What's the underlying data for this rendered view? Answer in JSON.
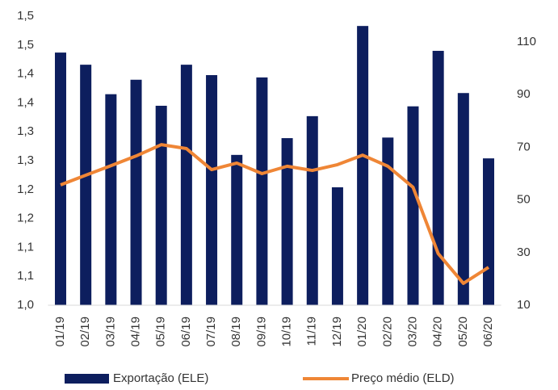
{
  "chart_data": {
    "type": "bar_line",
    "categories": [
      "01/19",
      "02/19",
      "03/19",
      "04/19",
      "05/19",
      "06/19",
      "07/19",
      "08/19",
      "09/19",
      "10/19",
      "11/19",
      "12/19",
      "01/20",
      "02/20",
      "03/20",
      "04/20",
      "05/20",
      "06/20"
    ],
    "series": [
      {
        "name": "Exportação (ELE)",
        "type": "bar",
        "color": "#0d1e5e",
        "values": [
          1.437,
          1.416,
          1.365,
          1.39,
          1.345,
          1.416,
          1.398,
          1.26,
          1.394,
          1.289,
          1.327,
          1.204,
          1.483,
          1.29,
          1.344,
          1.44,
          1.367,
          1.254
        ]
      },
      {
        "name": "Preço médio (ELD)",
        "type": "line",
        "axis": "y2",
        "color": "#ef8636",
        "values": [
          55.7,
          59.4,
          63,
          66.7,
          71,
          69.5,
          61.5,
          64,
          60,
          62.8,
          61.2,
          63.4,
          67,
          62.8,
          54.8,
          29.6,
          18.3,
          24.4
        ]
      }
    ],
    "ylim": [
      1.0,
      1.5
    ],
    "yticks": [
      {
        "value": 1.0,
        "label": "1,0"
      },
      {
        "value": 1.05,
        "label": "1,1"
      },
      {
        "value": 1.1,
        "label": "1,1"
      },
      {
        "value": 1.15,
        "label": "1,2"
      },
      {
        "value": 1.2,
        "label": "1,2"
      },
      {
        "value": 1.25,
        "label": "1,3"
      },
      {
        "value": 1.3,
        "label": "1,3"
      },
      {
        "value": 1.35,
        "label": "1,4"
      },
      {
        "value": 1.4,
        "label": "1,4"
      },
      {
        "value": 1.45,
        "label": "1,5"
      },
      {
        "value": 1.5,
        "label": "1,5"
      }
    ],
    "y2lim": [
      10,
      110
    ],
    "y2ticks": [
      10,
      30,
      50,
      70,
      90,
      110
    ],
    "legend": "bottom"
  }
}
